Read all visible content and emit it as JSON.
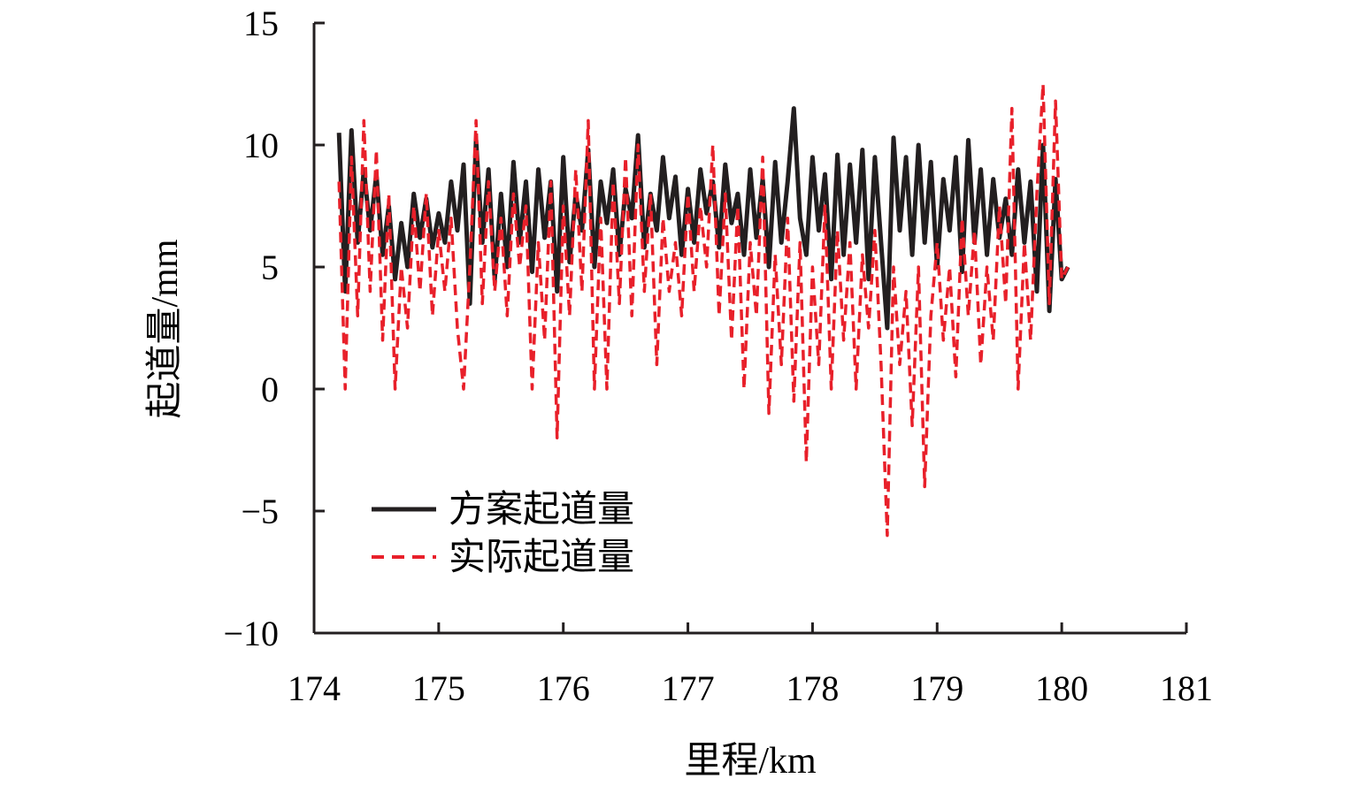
{
  "chart_data": {
    "type": "line",
    "title": "",
    "xlabel": "里程/km",
    "ylabel": "起道量/mm",
    "xlim": [
      174,
      181
    ],
    "ylim": [
      -10,
      15
    ],
    "x_ticks": [
      174,
      175,
      176,
      177,
      178,
      179,
      180,
      181
    ],
    "y_ticks": [
      -10,
      -5,
      0,
      5,
      10,
      15
    ],
    "x_tick_labels": [
      "174",
      "175",
      "176",
      "177",
      "178",
      "179",
      "180",
      "181"
    ],
    "y_tick_labels": [
      "−10",
      "−5",
      "0",
      "5",
      "10",
      "15"
    ],
    "grid": false,
    "legend_position": "lower-left",
    "series": [
      {
        "name": "方案起道量",
        "color": "#231f20",
        "style": "solid",
        "x": [
          174.2,
          174.25,
          174.3,
          174.35,
          174.4,
          174.45,
          174.5,
          174.55,
          174.6,
          174.65,
          174.7,
          174.75,
          174.8,
          174.85,
          174.9,
          174.95,
          175.0,
          175.05,
          175.1,
          175.15,
          175.2,
          175.25,
          175.3,
          175.35,
          175.4,
          175.45,
          175.5,
          175.55,
          175.6,
          175.65,
          175.7,
          175.75,
          175.8,
          175.85,
          175.9,
          175.95,
          176.0,
          176.05,
          176.1,
          176.15,
          176.2,
          176.25,
          176.3,
          176.35,
          176.4,
          176.45,
          176.5,
          176.55,
          176.6,
          176.65,
          176.7,
          176.75,
          176.8,
          176.85,
          176.9,
          176.95,
          177.0,
          177.05,
          177.1,
          177.15,
          177.2,
          177.25,
          177.3,
          177.35,
          177.4,
          177.45,
          177.5,
          177.55,
          177.6,
          177.65,
          177.7,
          177.75,
          177.8,
          177.85,
          177.9,
          177.95,
          178.0,
          178.05,
          178.1,
          178.15,
          178.2,
          178.25,
          178.3,
          178.35,
          178.4,
          178.45,
          178.5,
          178.55,
          178.6,
          178.65,
          178.7,
          178.75,
          178.8,
          178.85,
          178.9,
          178.95,
          179.0,
          179.05,
          179.1,
          179.15,
          179.2,
          179.25,
          179.3,
          179.35,
          179.4,
          179.45,
          179.5,
          179.55,
          179.6,
          179.65,
          179.7,
          179.75,
          179.8,
          179.85,
          179.9,
          179.95,
          180.0,
          180.05
        ],
        "values": [
          10.5,
          4.0,
          10.6,
          6.0,
          9.0,
          6.5,
          8.8,
          5.5,
          7.5,
          4.5,
          6.8,
          5.0,
          8.0,
          6.2,
          7.8,
          5.8,
          7.2,
          6.0,
          8.5,
          6.5,
          9.2,
          3.5,
          10.2,
          6.0,
          9.0,
          4.5,
          8.0,
          5.0,
          9.3,
          6.0,
          8.5,
          4.8,
          9.0,
          6.2,
          8.5,
          4.0,
          9.5,
          5.2,
          8.0,
          6.5,
          9.8,
          5.0,
          8.5,
          6.8,
          9.0,
          5.5,
          8.2,
          7.0,
          10.4,
          5.8,
          8.0,
          6.5,
          9.5,
          7.0,
          8.7,
          5.5,
          8.2,
          6.0,
          9.0,
          7.2,
          8.5,
          5.8,
          9.2,
          6.8,
          8.0,
          5.5,
          9.0,
          6.2,
          8.6,
          5.0,
          9.3,
          6.0,
          8.5,
          11.5,
          7.0,
          5.5,
          9.5,
          6.5,
          8.8,
          4.5,
          9.6,
          5.5,
          9.2,
          6.0,
          9.8,
          4.5,
          9.5,
          6.0,
          2.5,
          10.3,
          6.5,
          9.5,
          5.5,
          10.0,
          6.0,
          9.3,
          5.0,
          8.6,
          6.5,
          9.5,
          4.8,
          10.2,
          6.0,
          9.0,
          5.5,
          8.6,
          6.2,
          7.8,
          5.5,
          9.0,
          6.0,
          8.5,
          4.0,
          10.0,
          3.2,
          8.6,
          4.5,
          5.0
        ]
      },
      {
        "name": "实际起道量",
        "color": "#e8202a",
        "style": "dashed",
        "x": [
          174.2,
          174.25,
          174.3,
          174.35,
          174.4,
          174.45,
          174.5,
          174.55,
          174.6,
          174.65,
          174.7,
          174.75,
          174.8,
          174.85,
          174.9,
          174.95,
          175.0,
          175.05,
          175.1,
          175.15,
          175.2,
          175.25,
          175.3,
          175.35,
          175.4,
          175.45,
          175.5,
          175.55,
          175.6,
          175.65,
          175.7,
          175.75,
          175.8,
          175.85,
          175.9,
          175.95,
          176.0,
          176.05,
          176.1,
          176.15,
          176.2,
          176.25,
          176.3,
          176.35,
          176.4,
          176.45,
          176.5,
          176.55,
          176.6,
          176.65,
          176.7,
          176.75,
          176.8,
          176.85,
          176.9,
          176.95,
          177.0,
          177.05,
          177.1,
          177.15,
          177.2,
          177.25,
          177.3,
          177.35,
          177.4,
          177.45,
          177.5,
          177.55,
          177.6,
          177.65,
          177.7,
          177.75,
          177.8,
          177.85,
          177.9,
          177.95,
          178.0,
          178.05,
          178.1,
          178.15,
          178.2,
          178.25,
          178.3,
          178.35,
          178.4,
          178.45,
          178.5,
          178.55,
          178.6,
          178.65,
          178.7,
          178.75,
          178.8,
          178.85,
          178.9,
          178.95,
          179.0,
          179.05,
          179.1,
          179.15,
          179.2,
          179.25,
          179.3,
          179.35,
          179.4,
          179.45,
          179.5,
          179.55,
          179.6,
          179.65,
          179.7,
          179.75,
          179.8,
          179.85,
          179.9,
          179.95,
          180.0,
          180.05
        ],
        "values": [
          8.5,
          0.0,
          9.5,
          3.0,
          11.0,
          4.0,
          9.8,
          2.0,
          8.0,
          0.0,
          5.0,
          2.5,
          7.5,
          4.0,
          8.0,
          3.0,
          6.5,
          4.0,
          7.0,
          2.5,
          0.0,
          5.0,
          11.0,
          3.5,
          8.5,
          4.0,
          7.0,
          3.0,
          8.0,
          5.0,
          7.5,
          0.0,
          6.0,
          2.0,
          8.5,
          -2.0,
          7.5,
          3.0,
          9.0,
          4.0,
          11.0,
          0.0,
          7.0,
          0.0,
          8.5,
          3.5,
          9.5,
          3.0,
          10.0,
          4.0,
          8.0,
          1.0,
          7.0,
          4.0,
          6.0,
          3.0,
          8.0,
          4.0,
          7.5,
          5.0,
          10.0,
          3.0,
          8.0,
          2.0,
          7.5,
          0.0,
          6.0,
          3.0,
          9.5,
          -1.0,
          5.5,
          1.0,
          7.0,
          -0.5,
          6.0,
          -3.0,
          5.0,
          1.0,
          7.5,
          0.0,
          6.5,
          2.0,
          6.0,
          0.0,
          5.5,
          2.5,
          6.5,
          1.0,
          -6.0,
          5.0,
          1.0,
          4.0,
          -1.5,
          5.0,
          -4.0,
          3.0,
          6.0,
          2.0,
          5.0,
          0.5,
          7.0,
          3.0,
          6.5,
          1.0,
          5.0,
          2.0,
          7.5,
          3.5,
          11.5,
          0.0,
          6.0,
          2.0,
          8.0,
          12.5,
          3.5,
          11.8,
          4.5,
          5.0
        ]
      }
    ]
  }
}
